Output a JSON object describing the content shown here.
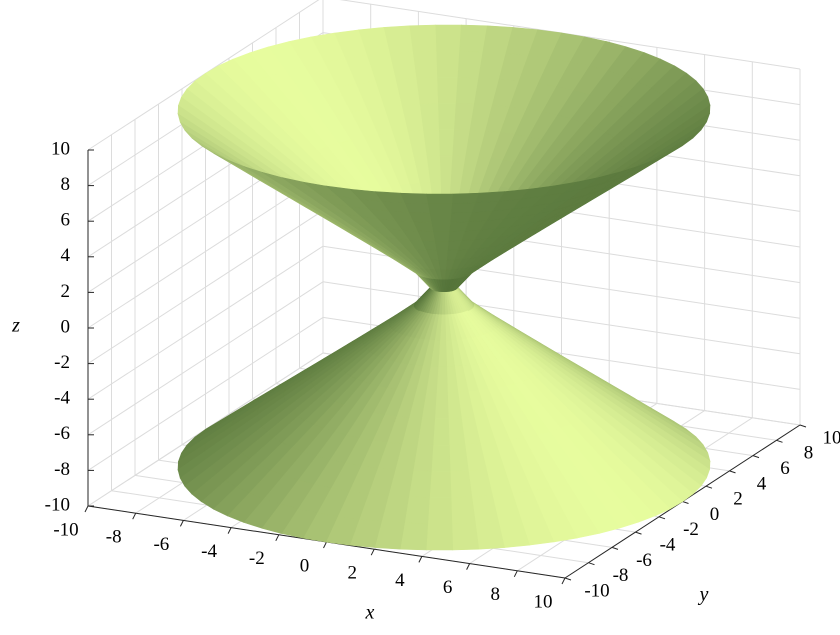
{
  "chart_data": {
    "type": "surface3d",
    "xlabel": "x",
    "ylabel": "y",
    "zlabel": "z",
    "xlim": [
      -10,
      10
    ],
    "ylim": [
      -10,
      10
    ],
    "zlim": [
      -10,
      10
    ],
    "xticks": [
      -10,
      -8,
      -6,
      -4,
      -2,
      0,
      2,
      4,
      6,
      8,
      10
    ],
    "yticks": [
      -10,
      -8,
      -6,
      -4,
      -2,
      0,
      2,
      4,
      6,
      8,
      10
    ],
    "zticks": [
      -10,
      -8,
      -6,
      -4,
      -2,
      0,
      2,
      4,
      6,
      8,
      10
    ],
    "grid": true,
    "surface": {
      "z": [
        -10,
        -9,
        -8,
        -7,
        -6,
        -5,
        -4,
        -3,
        -2,
        -1,
        0,
        1,
        2,
        3,
        4,
        5,
        6,
        7,
        8,
        9,
        10
      ],
      "r": [
        10.01,
        9.01,
        8.02,
        7.02,
        6.02,
        5.02,
        4.03,
        3.04,
        2.06,
        1.12,
        0.5,
        1.12,
        2.06,
        3.04,
        4.03,
        5.02,
        6.02,
        7.02,
        8.02,
        9.01,
        10.01
      ],
      "color_dark": "#55743a",
      "color_light": "#eaffa0"
    }
  }
}
